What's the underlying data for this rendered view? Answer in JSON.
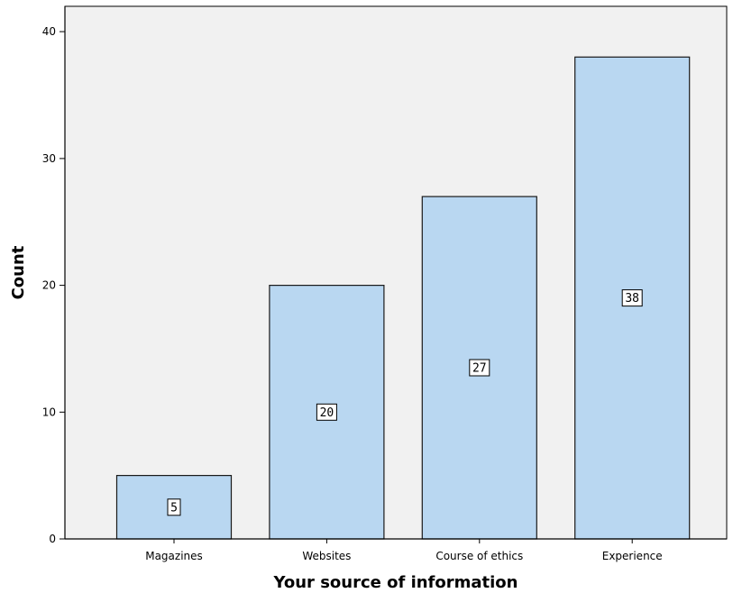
{
  "chart_data": {
    "type": "bar",
    "categories": [
      "Magazines",
      "Websites",
      "Course of ethics",
      "Experience"
    ],
    "values": [
      5,
      20,
      27,
      38
    ],
    "data_labels": [
      "5",
      "20",
      "27",
      "38"
    ],
    "title": "",
    "xlabel": "Your source of information",
    "ylabel": "Count",
    "ylim": [
      0,
      42
    ],
    "yticks": [
      0,
      10,
      20,
      30,
      40
    ],
    "ytick_labels": [
      "0",
      "10",
      "20",
      "30",
      "40"
    ],
    "grid": false,
    "legend": "none",
    "colors": {
      "bar_fill": "#b9d7f1",
      "bar_stroke": "#1a1a1a",
      "plot_background": "#f1f1f1",
      "axis": "#000000",
      "label_box_fill": "#ffffff"
    }
  }
}
